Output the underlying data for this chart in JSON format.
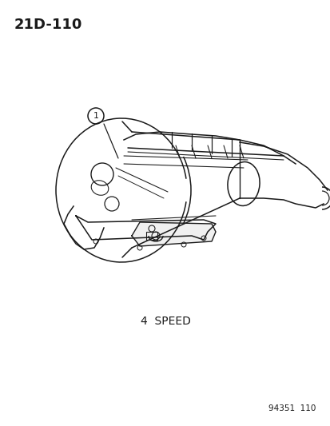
{
  "page_id": "21D-110",
  "caption": "4  SPEED",
  "part_number_label": "94351  110",
  "callout_number": "1",
  "background_color": "#ffffff",
  "line_color": "#1a1a1a",
  "text_color": "#1a1a1a",
  "page_id_fontsize": 13,
  "caption_fontsize": 10,
  "part_number_fontsize": 7.5,
  "callout_fontsize": 8
}
